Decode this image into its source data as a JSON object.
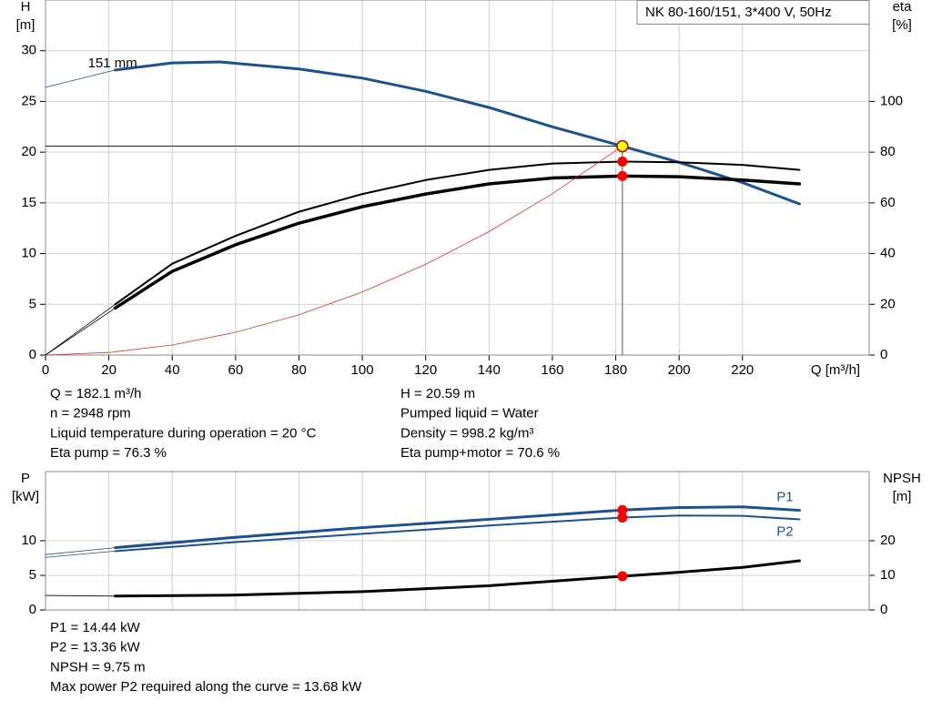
{
  "chart_data": [
    {
      "type": "line",
      "title": "NK 80-160/151, 3*400 V, 50Hz",
      "ylabel": "H",
      "yunit": "[m]",
      "y2label": "eta",
      "y2unit": "[%]",
      "xlabel": "Q [m³/h]",
      "xlim": [
        0,
        260
      ],
      "xticks": [
        0,
        20,
        40,
        60,
        80,
        100,
        120,
        140,
        160,
        180,
        200,
        220
      ],
      "ylim": [
        0,
        35
      ],
      "yticks": [
        0,
        5,
        10,
        15,
        20,
        25,
        30
      ],
      "y2lim": [
        0,
        140
      ],
      "y2ticks": [
        0,
        20,
        40,
        60,
        80,
        100
      ],
      "grid": true,
      "series": [
        {
          "color": "#1a5291",
          "width": 0.8,
          "x": [
            0,
            22
          ],
          "values": [
            26.4,
            28.1
          ]
        },
        {
          "name": "151 mm",
          "color": "#1a5291",
          "width": 3,
          "x": [
            22,
            40,
            55,
            80,
            100,
            120,
            140,
            160,
            182.1,
            200,
            220,
            238
          ],
          "values": [
            28.1,
            28.8,
            28.9,
            28.2,
            27.3,
            26.0,
            24.4,
            22.5,
            20.59,
            19.0,
            17.0,
            14.9
          ]
        },
        {
          "axis": "y2",
          "color": "#000000",
          "width": 0.8,
          "x": [
            0,
            22
          ],
          "values": [
            0,
            20
          ]
        },
        {
          "axis": "y2",
          "color": "#000000",
          "width": 2,
          "x": [
            22,
            40,
            60,
            80,
            100,
            120,
            140,
            160,
            182.1,
            200,
            220,
            238
          ],
          "values": [
            20,
            36,
            47,
            56.5,
            63.5,
            69,
            73,
            75.5,
            76.3,
            76,
            75,
            73
          ]
        },
        {
          "axis": "y2",
          "color": "#000000",
          "width": 0.8,
          "x": [
            0,
            22
          ],
          "values": [
            0,
            18.5
          ]
        },
        {
          "axis": "y2",
          "color": "#000000",
          "width": 3.5,
          "x": [
            22,
            40,
            60,
            80,
            100,
            120,
            140,
            160,
            182.1,
            200,
            220,
            238
          ],
          "values": [
            18.5,
            33,
            43.5,
            52,
            58.5,
            63.5,
            67.5,
            69.8,
            70.6,
            70.3,
            69,
            67.5
          ]
        },
        {
          "color": "#e83020",
          "width": 0.8,
          "x": [
            0,
            20,
            40,
            60,
            80,
            100,
            120,
            140,
            160,
            182.1
          ],
          "values": [
            0,
            0.25,
            0.99,
            2.24,
            3.97,
            6.21,
            8.94,
            12.17,
            15.9,
            20.59
          ]
        }
      ],
      "points": [
        {
          "x": 182.1,
          "y": 20.59,
          "color": "#ffff00"
        },
        {
          "x": 182.1,
          "y": 76.3,
          "axis": "y2",
          "color": "#ff0000"
        },
        {
          "x": 182.1,
          "y": 70.6,
          "axis": "y2",
          "color": "#ff0000"
        }
      ],
      "notes": [
        [
          "Q = 182.1 m³/h",
          "n = 2948 rpm",
          "Liquid temperature during operation = 20 °C",
          "Eta pump = 76.3 %"
        ],
        [
          "H = 20.59 m",
          "Pumped liquid = Water",
          "Density = 998.2 kg/m³",
          "Eta pump+motor = 70.6 %"
        ]
      ]
    },
    {
      "type": "line",
      "ylabel": "P",
      "yunit": "[kW]",
      "y2label": "NPSH",
      "y2unit": "[m]",
      "xlim": [
        0,
        260
      ],
      "ylim": [
        0,
        20
      ],
      "yticks": [
        0,
        5,
        10
      ],
      "y2lim": [
        0,
        40
      ],
      "y2ticks": [
        0,
        10,
        20
      ],
      "grid": true,
      "series": [
        {
          "color": "#1a5291",
          "width": 0.8,
          "x": [
            0,
            22
          ],
          "values": [
            8.0,
            9.0
          ]
        },
        {
          "name": "P1",
          "color": "#1a5291",
          "width": 3,
          "x": [
            22,
            60,
            100,
            140,
            182.1,
            200,
            220,
            238
          ],
          "values": [
            9.0,
            10.5,
            11.9,
            13.1,
            14.44,
            14.8,
            14.9,
            14.4
          ]
        },
        {
          "color": "#1a5291",
          "width": 0.8,
          "x": [
            0,
            22
          ],
          "values": [
            7.6,
            8.5
          ]
        },
        {
          "name": "P2",
          "color": "#1a5291",
          "width": 2,
          "x": [
            22,
            60,
            100,
            140,
            182.1,
            200,
            220,
            238
          ],
          "values": [
            8.5,
            9.8,
            11.0,
            12.2,
            13.36,
            13.65,
            13.6,
            13.1
          ]
        },
        {
          "axis": "y2",
          "color": "#000000",
          "width": 0.8,
          "x": [
            0,
            22
          ],
          "values": [
            4.2,
            4.0
          ]
        },
        {
          "axis": "y2",
          "color": "#000000",
          "width": 3,
          "x": [
            22,
            60,
            100,
            140,
            182.1,
            200,
            220,
            238
          ],
          "values": [
            4.0,
            4.3,
            5.3,
            7.0,
            9.75,
            10.9,
            12.3,
            14.2
          ]
        }
      ],
      "points": [
        {
          "x": 182.1,
          "y": 14.44,
          "color": "#ff0000"
        },
        {
          "x": 182.1,
          "y": 13.36,
          "color": "#ff0000"
        },
        {
          "x": 182.1,
          "y": 9.75,
          "axis": "y2",
          "color": "#ff0000"
        }
      ],
      "notes": [
        [
          "P1 = 14.44 kW",
          "P2 = 13.36 kW",
          "NPSH = 9.75 m",
          "Max power P2 required along the curve = 13.68 kW"
        ]
      ]
    }
  ]
}
